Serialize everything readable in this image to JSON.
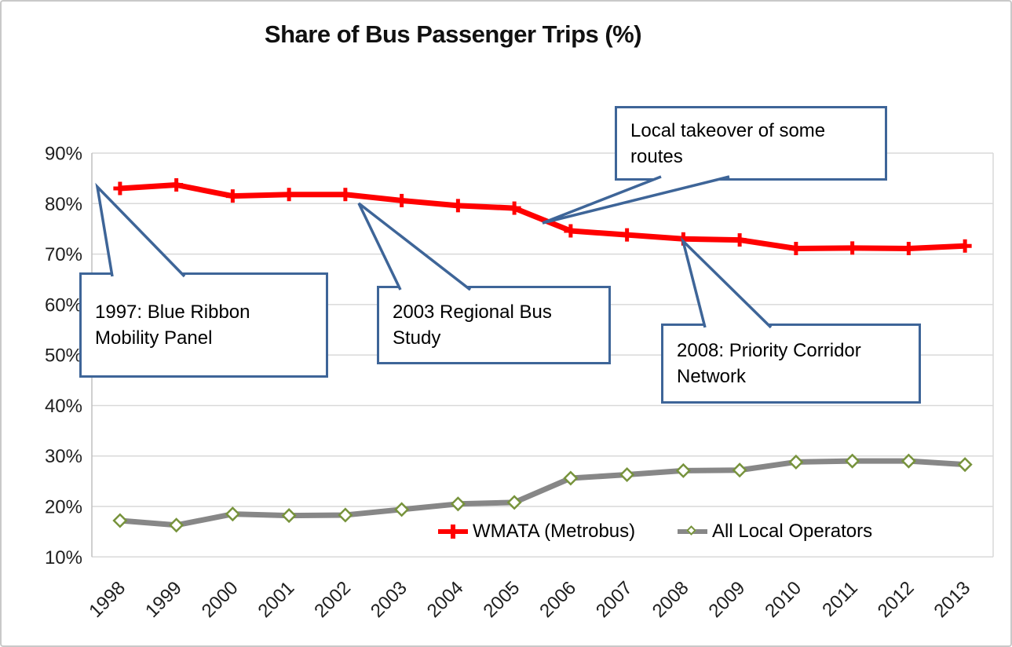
{
  "title": "Share of Bus Passenger Trips (%)",
  "chart_data": {
    "type": "line",
    "title": "Share of Bus Passenger Trips (%)",
    "categories": [
      "1998",
      "1999",
      "2000",
      "2001",
      "2002",
      "2003",
      "2004",
      "2005",
      "2006",
      "2007",
      "2008",
      "2009",
      "2010",
      "2011",
      "2012",
      "2013"
    ],
    "series": [
      {
        "name": "WMATA (Metrobus)",
        "color": "#FF0000",
        "marker": "plus",
        "values": [
          83.0,
          83.7,
          81.5,
          81.8,
          81.8,
          80.6,
          79.6,
          79.1,
          74.6,
          73.8,
          73.0,
          72.8,
          71.1,
          71.2,
          71.1,
          71.6
        ]
      },
      {
        "name": "All Local Operators",
        "color": "#878787",
        "marker": "diamond",
        "marker_outline": "#77933C",
        "marker_fill": "#FFFFFF",
        "values": [
          17.2,
          16.3,
          18.5,
          18.2,
          18.3,
          19.4,
          20.5,
          20.8,
          25.6,
          26.3,
          27.1,
          27.2,
          28.8,
          29.0,
          29.0,
          28.3
        ]
      }
    ],
    "ylim": [
      10,
      90
    ],
    "y_ticks": [
      {
        "value": 10,
        "label": "10%"
      },
      {
        "value": 20,
        "label": "20%"
      },
      {
        "value": 30,
        "label": "30%"
      },
      {
        "value": 40,
        "label": "40%"
      },
      {
        "value": 50,
        "label": "50%"
      },
      {
        "value": 60,
        "label": "60%"
      },
      {
        "value": 70,
        "label": "70%"
      },
      {
        "value": 80,
        "label": "80%"
      },
      {
        "value": 90,
        "label": "90%"
      }
    ],
    "grid": true,
    "x_label_rotation": -45,
    "legend_position": "bottom-inside",
    "annotations": [
      {
        "id": "a1997",
        "text": "1997: Blue Ribbon Mobility Panel",
        "points_at": "start of WMATA line (before 1998)"
      },
      {
        "id": "a2003",
        "text": "2003 Regional Bus Study",
        "points_at": "WMATA line near 2003"
      },
      {
        "id": "takeover",
        "text": "Local takeover of some routes",
        "points_at": "WMATA line between 2005 and 2006"
      },
      {
        "id": "a2008",
        "text": "2008: Priority Corridor Network",
        "points_at": "WMATA line at 2008"
      }
    ]
  },
  "annotations": {
    "a1997": {
      "line1": "1997: Blue Ribbon",
      "line2": "Mobility Panel"
    },
    "a2003": {
      "line1": "2003 Regional Bus",
      "line2": "Study"
    },
    "takeover": {
      "line1": "Local takeover of some",
      "line2": "routes"
    },
    "a2008": {
      "line1": "2008: Priority Corridor",
      "line2": "Network"
    }
  },
  "colors": {
    "wmata_red": "#FF0000",
    "operators_gray": "#878787",
    "diamond_green": "#77933C",
    "callout_border": "#3E6598",
    "gridline": "#D9D9D9",
    "axis_line": "#BFBFBF",
    "label_text": "#1F1F1F",
    "background": "#FFFFFF",
    "page_border": "#C9C9C9"
  }
}
